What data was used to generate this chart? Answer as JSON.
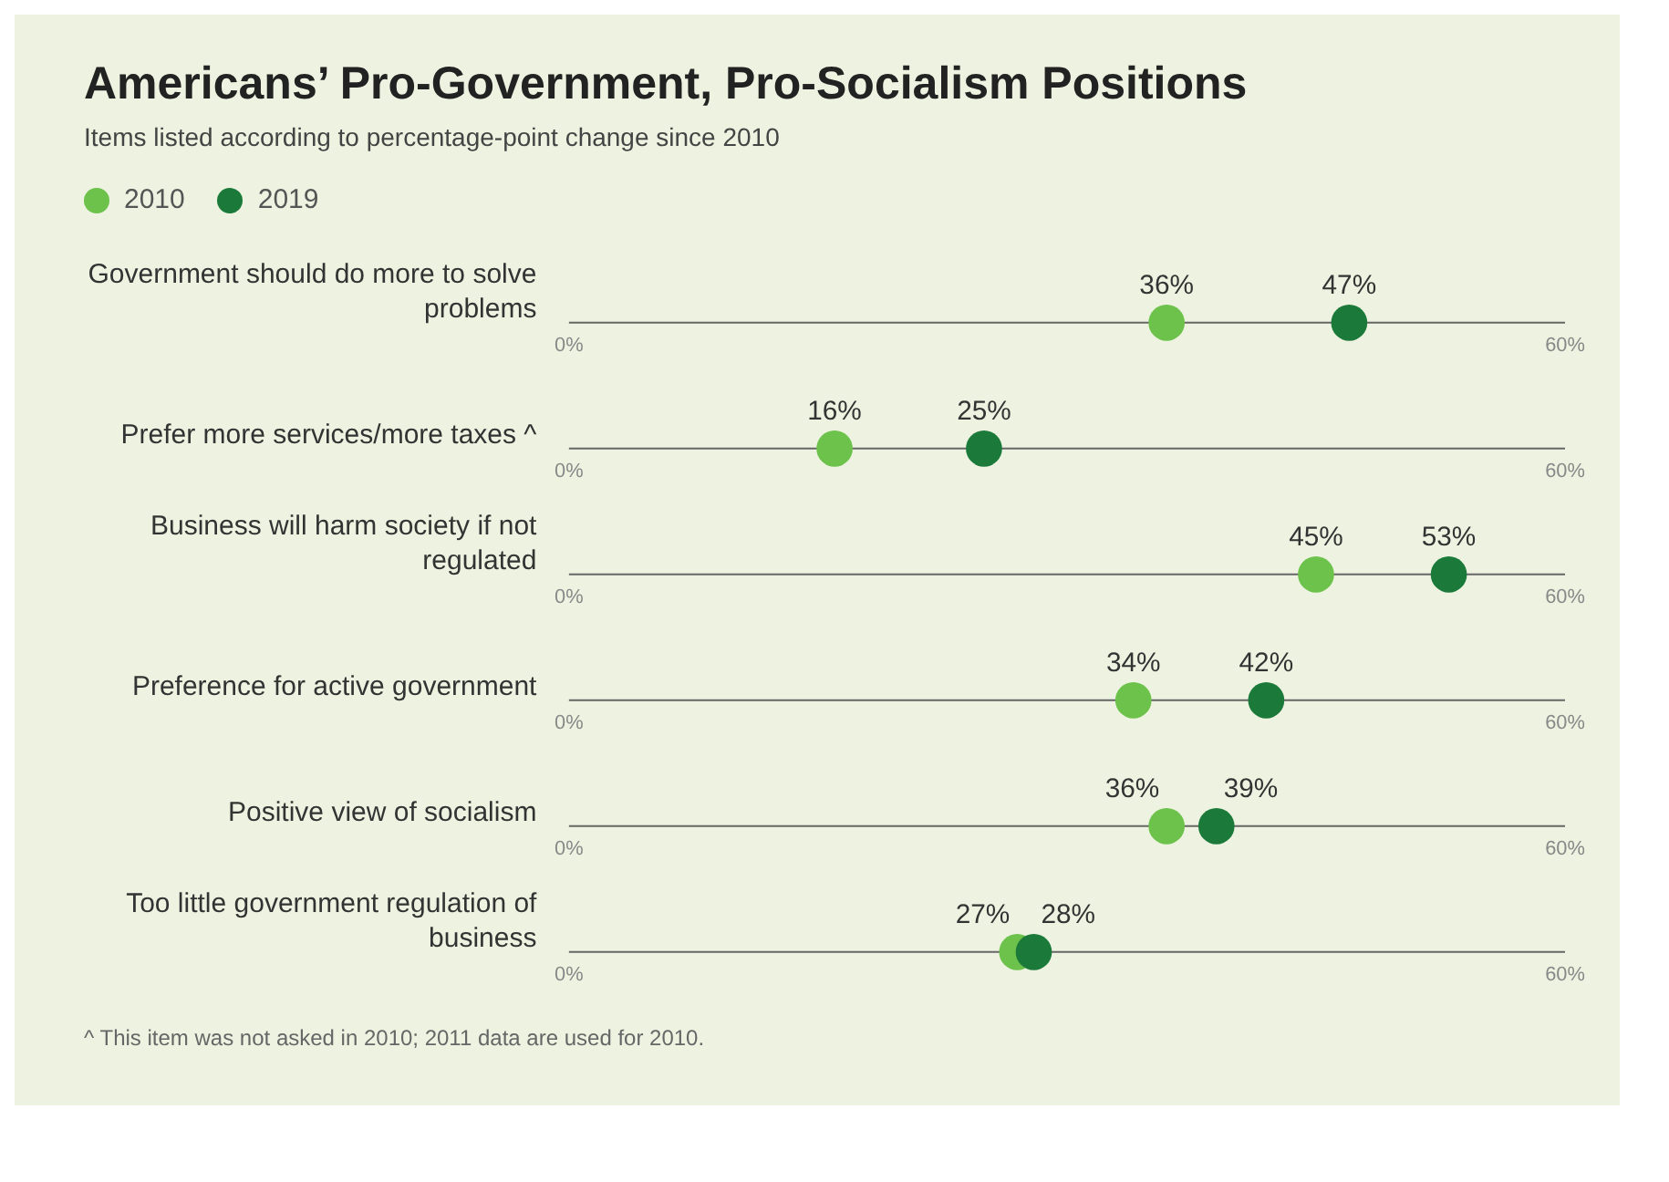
{
  "chart_data": {
    "type": "scatter",
    "title": "Americans’ Pro-Government, Pro-Socialism Positions",
    "subtitle": "Items listed according to percentage-point change since 2010",
    "categories": [
      "Government should do more to solve problems",
      "Prefer more services/more taxes ^",
      "Business will harm society if not regulated",
      "Preference for active government",
      "Positive view of socialism",
      "Too little government regulation of business"
    ],
    "orientation": "horizontal",
    "series": [
      {
        "name": "2010",
        "color": "#6cc24a",
        "values": [
          36,
          16,
          45,
          34,
          36,
          27
        ],
        "value_labels": [
          "36%",
          "16%",
          "45%",
          "34%",
          "36%",
          "27%"
        ]
      },
      {
        "name": "2019",
        "color": "#1b7a3a",
        "values": [
          47,
          25,
          53,
          42,
          39,
          28
        ],
        "value_labels": [
          "47%",
          "25%",
          "53%",
          "42%",
          "39%",
          "28%"
        ]
      }
    ],
    "xlim": [
      0,
      60
    ],
    "xticks": [
      {
        "value": 0,
        "label": "0%"
      },
      {
        "value": 60,
        "label": "60%"
      }
    ],
    "marker": "circle",
    "legend": "top left",
    "annotations": [
      "^ This item was not asked in 2010; 2011 data are used for 2010."
    ]
  }
}
